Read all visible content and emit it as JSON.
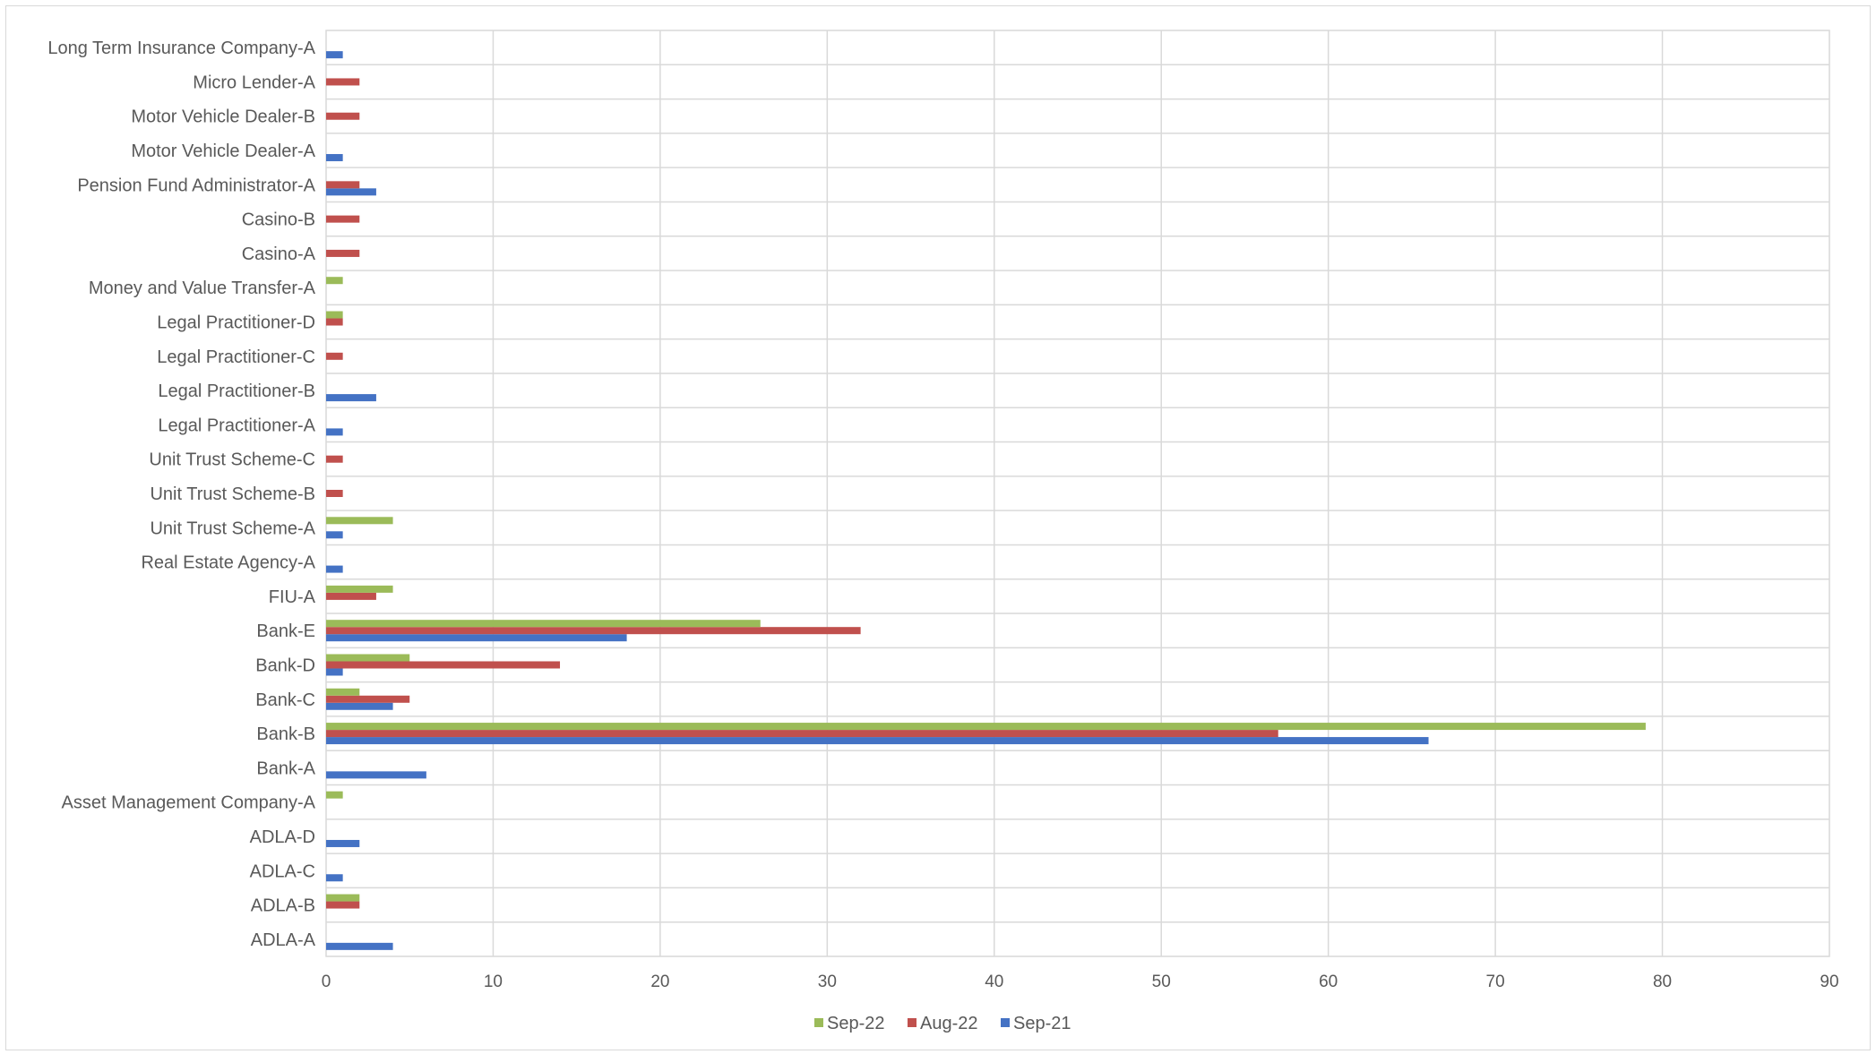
{
  "chart_data": {
    "type": "bar",
    "orientation": "horizontal",
    "title": "",
    "xlabel": "",
    "ylabel": "",
    "xlim": [
      0,
      90
    ],
    "x_ticks": [
      0,
      10,
      20,
      30,
      40,
      50,
      60,
      70,
      80,
      90
    ],
    "grid": true,
    "legend_position": "bottom",
    "categories": [
      "ADLA-A",
      "ADLA-B",
      "ADLA-C",
      "ADLA-D",
      "Asset Management Company-A",
      "Bank-A",
      "Bank-B",
      "Bank-C",
      "Bank-D",
      "Bank-E",
      "FIU-A",
      "Real Estate Agency-A",
      "Unit Trust Scheme-A",
      "Unit Trust Scheme-B",
      "Unit Trust Scheme-C",
      "Legal Practitioner-A",
      "Legal Practitioner-B",
      "Legal Practitioner-C",
      "Legal Practitioner-D",
      "Money and Value Transfer-A",
      "Casino-A",
      "Casino-B",
      "Pension Fund Administrator-A",
      "Motor Vehicle Dealer-A",
      "Motor Vehicle Dealer-B",
      "Micro Lender-A",
      "Long Term Insurance Company-A"
    ],
    "series": [
      {
        "name": "Sep-21",
        "color": "#4472c4",
        "values": [
          4,
          0,
          1,
          2,
          0,
          6,
          66,
          4,
          1,
          18,
          0,
          1,
          1,
          0,
          0,
          1,
          3,
          0,
          0,
          0,
          0,
          0,
          3,
          1,
          0,
          0,
          1
        ]
      },
      {
        "name": "Aug-22",
        "color": "#c0504d",
        "values": [
          0,
          2,
          0,
          0,
          0,
          0,
          57,
          5,
          14,
          32,
          3,
          0,
          0,
          1,
          1,
          0,
          0,
          1,
          1,
          0,
          2,
          2,
          2,
          0,
          2,
          2,
          0
        ]
      },
      {
        "name": "Sep-22",
        "color": "#9bbb59",
        "values": [
          0,
          2,
          0,
          0,
          1,
          0,
          79,
          2,
          5,
          26,
          4,
          0,
          4,
          0,
          0,
          0,
          0,
          0,
          1,
          1,
          0,
          0,
          0,
          0,
          0,
          0,
          0
        ]
      }
    ],
    "legend": [
      "Sep-22",
      "Aug-22",
      "Sep-21"
    ]
  }
}
